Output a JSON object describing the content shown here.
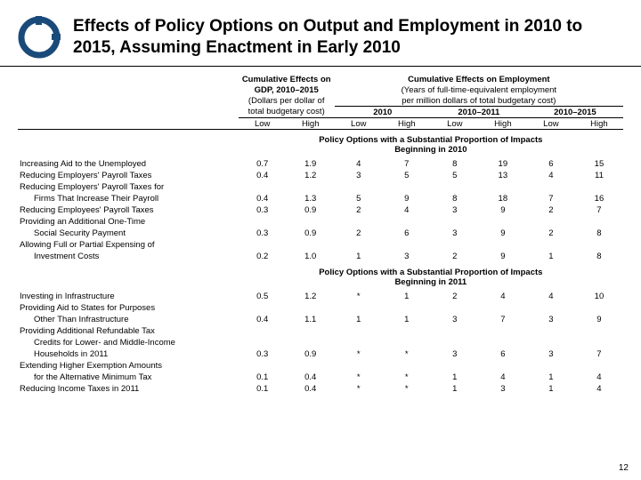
{
  "title": "Effects of Policy Options on Output and Employment in 2010 to 2015, Assuming Enactment in Early 2010",
  "hdr": {
    "gdp_top": "Cumulative Effects on",
    "gdp_mid": "GDP, 2010–2015",
    "gdp_sub1": "(Dollars per dollar of",
    "gdp_sub2": "total budgetary cost)",
    "emp_top": "Cumulative Effects on Employment",
    "emp_sub1": "(Years of full-time-equivalent employment",
    "emp_sub2": "per million dollars of total budgetary cost)",
    "y2010": "2010",
    "y2010_11": "2010–2011",
    "y2010_15": "2010–2015",
    "low": "Low",
    "high": "High"
  },
  "sections": {
    "s2010": "Policy Options with a Substantial Proportion of Impacts Beginning in 2010",
    "s2011": "Policy Options with a Substantial Proportion of Impacts Beginning in 2011"
  },
  "rows2010": [
    {
      "l": "Increasing Aid to the Unemployed",
      "v": [
        "0.7",
        "1.9",
        "4",
        "7",
        "8",
        "19",
        "6",
        "15"
      ],
      "i": 0
    },
    {
      "l": "Reducing Employers' Payroll Taxes",
      "v": [
        "0.4",
        "1.2",
        "3",
        "5",
        "5",
        "13",
        "4",
        "11"
      ],
      "i": 0
    },
    {
      "l": "Reducing Employers' Payroll Taxes for",
      "v": null,
      "i": 0
    },
    {
      "l": "Firms That Increase Their Payroll",
      "v": [
        "0.4",
        "1.3",
        "5",
        "9",
        "8",
        "18",
        "7",
        "16"
      ],
      "i": 1
    },
    {
      "l": "Reducing Employees' Payroll Taxes",
      "v": [
        "0.3",
        "0.9",
        "2",
        "4",
        "3",
        "9",
        "2",
        "7"
      ],
      "i": 0
    },
    {
      "l": "Providing an Additional One-Time",
      "v": null,
      "i": 0
    },
    {
      "l": "Social Security Payment",
      "v": [
        "0.3",
        "0.9",
        "2",
        "6",
        "3",
        "9",
        "2",
        "8"
      ],
      "i": 1
    },
    {
      "l": "Allowing Full or Partial Expensing of",
      "v": null,
      "i": 0
    },
    {
      "l": "Investment Costs",
      "v": [
        "0.2",
        "1.0",
        "1",
        "3",
        "2",
        "9",
        "1",
        "8"
      ],
      "i": 1
    }
  ],
  "rows2011": [
    {
      "l": "Investing in Infrastructure",
      "v": [
        "0.5",
        "1.2",
        "*",
        "1",
        "2",
        "4",
        "4",
        "10"
      ],
      "i": 0
    },
    {
      "l": "Providing Aid to States for Purposes",
      "v": null,
      "i": 0
    },
    {
      "l": "Other Than Infrastructure",
      "v": [
        "0.4",
        "1.1",
        "1",
        "1",
        "3",
        "7",
        "3",
        "9"
      ],
      "i": 1
    },
    {
      "l": "Providing Additional Refundable Tax",
      "v": null,
      "i": 0
    },
    {
      "l": "Credits for Lower- and Middle-Income",
      "v": null,
      "i": 1
    },
    {
      "l": "Households in 2011",
      "v": [
        "0.3",
        "0.9",
        "*",
        "*",
        "3",
        "6",
        "3",
        "7"
      ],
      "i": 1
    },
    {
      "l": "Extending Higher Exemption Amounts",
      "v": null,
      "i": 0
    },
    {
      "l": "for the Alternative Minimum Tax",
      "v": [
        "0.1",
        "0.4",
        "*",
        "*",
        "1",
        "4",
        "1",
        "4"
      ],
      "i": 1
    },
    {
      "l": "Reducing Income Taxes in 2011",
      "v": [
        "0.1",
        "0.4",
        "*",
        "*",
        "1",
        "3",
        "1",
        "4"
      ],
      "i": 0
    }
  ],
  "page": "12",
  "logo_color": "#1a4a7a"
}
